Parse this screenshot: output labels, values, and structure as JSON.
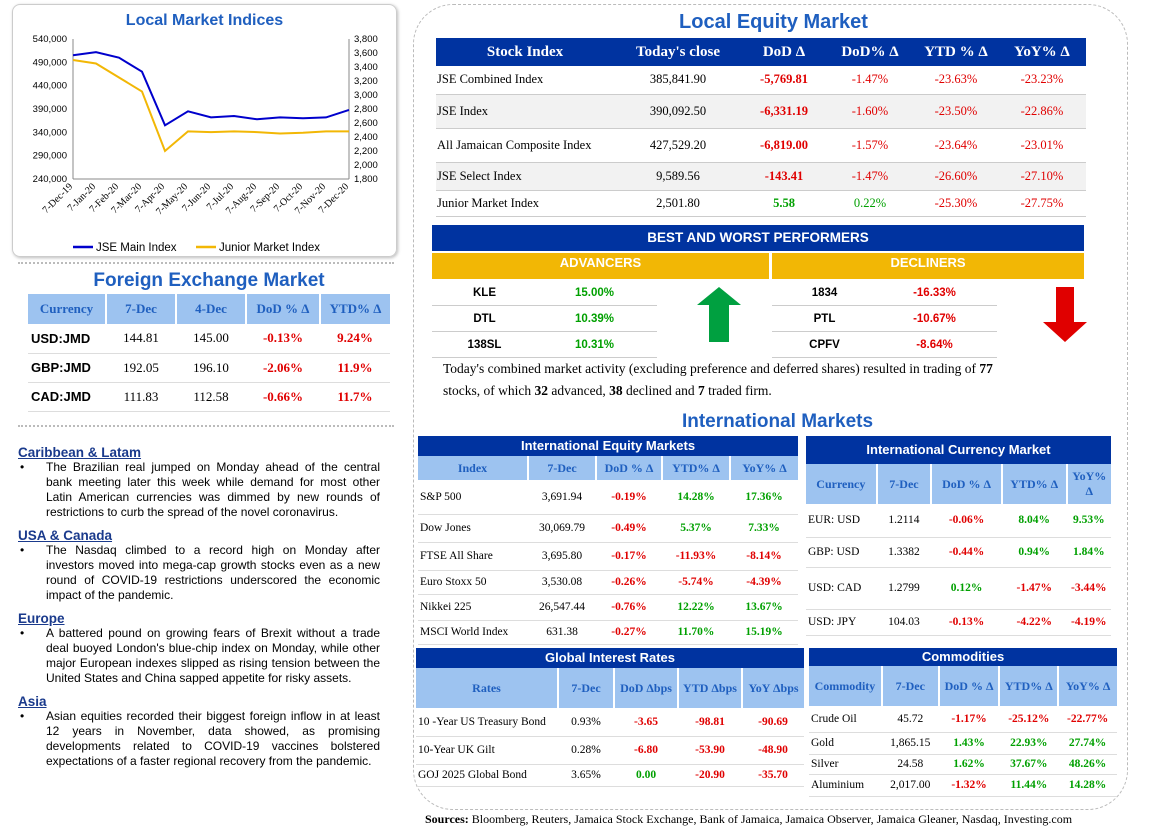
{
  "indices_chart": {
    "title": "Local Market Indices",
    "left_ticks": [
      "540,000",
      "490,000",
      "440,000",
      "390,000",
      "340,000",
      "290,000",
      "240,000"
    ],
    "right_ticks": [
      "3,800",
      "3,600",
      "3,400",
      "3,200",
      "3,000",
      "2,800",
      "2,600",
      "2,400",
      "2,200",
      "2,000",
      "1,800"
    ],
    "x_ticks": [
      "7-Dec-19",
      "7-Jan-20",
      "7-Feb-20",
      "7-Mar-20",
      "7-Apr-20",
      "7-May-20",
      "7-Jun-20",
      "7-Jul-20",
      "7-Aug-20",
      "7-Sep-20",
      "7-Oct-20",
      "7-Nov-20",
      "7-Dec-20"
    ],
    "legend": [
      "JSE Main Index",
      "Junior Market Index"
    ],
    "colors": {
      "main": "#0000cc",
      "junior": "#f2b705"
    }
  },
  "chart_data": {
    "type": "line",
    "title": "Local Market Indices",
    "x": [
      "7-Dec-19",
      "7-Jan-20",
      "7-Feb-20",
      "7-Mar-20",
      "7-Apr-20",
      "7-May-20",
      "7-Jun-20",
      "7-Jul-20",
      "7-Aug-20",
      "7-Sep-20",
      "7-Oct-20",
      "7-Nov-20",
      "7-Dec-20"
    ],
    "series": [
      {
        "name": "JSE Main Index",
        "axis": "left",
        "values": [
          505000,
          512000,
          500000,
          470000,
          355000,
          385000,
          372000,
          375000,
          368000,
          372000,
          370000,
          372000,
          388000
        ]
      },
      {
        "name": "Junior Market Index",
        "axis": "right",
        "values": [
          3500,
          3450,
          3250,
          3050,
          2200,
          2480,
          2470,
          2480,
          2470,
          2450,
          2460,
          2480,
          2480
        ]
      }
    ],
    "ylim_left": [
      240000,
      540000
    ],
    "ylim_right": [
      1800,
      3800
    ]
  },
  "fx": {
    "title": "Foreign Exchange Market",
    "headers": [
      "Currency",
      "7-Dec",
      "4-Dec",
      "DoD % Δ",
      "YTD% Δ"
    ],
    "rows": [
      {
        "currency": "USD:JMD",
        "c1": "144.81",
        "c2": "145.00",
        "dod": "-0.13%",
        "ytd": "9.24%"
      },
      {
        "currency": "GBP:JMD",
        "c1": "192.05",
        "c2": "196.10",
        "dod": "-2.06%",
        "ytd": "11.9%"
      },
      {
        "currency": "CAD:JMD",
        "c1": "111.83",
        "c2": "112.58",
        "dod": "-0.66%",
        "ytd": "11.7%"
      }
    ]
  },
  "news": [
    {
      "heading": "Caribbean & Latam",
      "text": "The Brazilian real jumped on Monday ahead of the central bank meeting later this week while demand for most other Latin American currencies was dimmed by new rounds of restrictions to curb the spread of the novel coronavirus."
    },
    {
      "heading": "USA & Canada",
      "text": "The Nasdaq climbed to a record high on Monday after investors moved into mega-cap growth stocks even as a new round of COVID-19 restrictions underscored the economic impact of the pandemic."
    },
    {
      "heading": "Europe",
      "text": "A battered pound on growing fears of Brexit without a trade deal buoyed London's blue-chip index on Monday, while other major European indexes slipped as rising tension between the United States and China sapped appetite for risky assets."
    },
    {
      "heading": "Asia",
      "text": "Asian equities recorded their biggest foreign inflow in at least 12 years in November, data showed, as promising developments related to COVID-19 vaccines bolstered expectations of a faster regional recovery from the pandemic."
    }
  ],
  "equity": {
    "title": "Local Equity Market",
    "headers": [
      "Stock Index",
      "Today's close",
      "DoD  Δ",
      "DoD% Δ",
      "YTD % Δ",
      "YoY% Δ"
    ],
    "rows": [
      {
        "name": "JSE Combined Index",
        "close": "385,841.90",
        "dod": "-5,769.81",
        "dodp": "-1.47%",
        "ytd": "-23.63%",
        "yoy": "-23.23%"
      },
      {
        "name": "JSE Index",
        "close": "390,092.50",
        "dod": "-6,331.19",
        "dodp": "-1.60%",
        "ytd": "-23.50%",
        "yoy": "-22.86%"
      },
      {
        "name": "All Jamaican Composite Index",
        "close": "427,529.20",
        "dod": "-6,819.00",
        "dodp": "-1.57%",
        "ytd": "-23.64%",
        "yoy": "-23.01%"
      },
      {
        "name": "JSE Select Index",
        "close": "9,589.56",
        "dod": "-143.41",
        "dodp": "-1.47%",
        "ytd": "-26.60%",
        "yoy": "-27.10%"
      },
      {
        "name": "Junior Market Index",
        "close": "2,501.80",
        "dod": "5.58",
        "dodp": "0.22%",
        "ytd": "-25.30%",
        "yoy": "-27.75%"
      }
    ]
  },
  "performers": {
    "title": "BEST AND WORST PERFORMERS",
    "adv_label": "ADVANCERS",
    "dec_label": "DECLINERS",
    "advancers": [
      {
        "t": "KLE",
        "v": "15.00%"
      },
      {
        "t": "DTL",
        "v": "10.39%"
      },
      {
        "t": "138SL",
        "v": "10.31%"
      }
    ],
    "decliners": [
      {
        "t": "1834",
        "v": "-16.33%"
      },
      {
        "t": "PTL",
        "v": "-10.67%"
      },
      {
        "t": "CPFV",
        "v": "-8.64%"
      }
    ]
  },
  "summary": {
    "p1": "Today's combined market activity (excluding preference and deferred shares) resulted in trading of ",
    "n1": "77",
    "p2": "stocks, of which ",
    "n2": "32",
    "p3": " advanced, ",
    "n3": "38",
    "p4": " declined and ",
    "n4": "7",
    "p5": " traded firm."
  },
  "intl_title": "International Markets",
  "intl_equity": {
    "title": "International Equity Markets",
    "headers": [
      "Index",
      "7-Dec",
      "DoD % Δ",
      "YTD% Δ",
      "YoY% Δ"
    ],
    "rows": [
      {
        "n": "S&P 500",
        "a": "3,691.94",
        "b": "-0.19%",
        "c": "14.28%",
        "d": "17.36%"
      },
      {
        "n": "Dow Jones",
        "a": "30,069.79",
        "b": "-0.49%",
        "c": "5.37%",
        "d": "7.33%"
      },
      {
        "n": "FTSE All Share",
        "a": "3,695.80",
        "b": "-0.17%",
        "c": "-11.93%",
        "d": "-8.14%"
      },
      {
        "n": "Euro Stoxx 50",
        "a": "3,530.08",
        "b": "-0.26%",
        "c": "-5.74%",
        "d": "-4.39%"
      },
      {
        "n": "Nikkei 225",
        "a": "26,547.44",
        "b": "-0.76%",
        "c": "12.22%",
        "d": "13.67%"
      },
      {
        "n": "MSCI World Index",
        "a": "631.38",
        "b": "-0.27%",
        "c": "11.70%",
        "d": "15.19%"
      }
    ]
  },
  "intl_fx": {
    "title": "International Currency Market",
    "headers": [
      "Currency",
      "7-Dec",
      "DoD % Δ",
      "YTD% Δ",
      "YoY% Δ"
    ],
    "rows": [
      {
        "n": "EUR: USD",
        "a": "1.2114",
        "b": "-0.06%",
        "c": "8.04%",
        "d": "9.53%"
      },
      {
        "n": "GBP: USD",
        "a": "1.3382",
        "b": "-0.44%",
        "c": "0.94%",
        "d": "1.84%"
      },
      {
        "n": "USD: CAD",
        "a": "1.2799",
        "b": "0.12%",
        "c": "-1.47%",
        "d": "-3.44%"
      },
      {
        "n": "USD: JPY",
        "a": "104.03",
        "b": "-0.13%",
        "c": "-4.22%",
        "d": "-4.19%"
      }
    ]
  },
  "rates": {
    "title": "Global Interest Rates",
    "headers": [
      "Rates",
      "7-Dec",
      "DoD Δbps",
      "YTD Δbps",
      "YoY Δbps"
    ],
    "rows": [
      {
        "n": "10 -Year US Treasury Bond",
        "a": "0.93%",
        "b": "-3.65",
        "c": "-98.81",
        "d": "-90.69"
      },
      {
        "n": "10-Year UK Gilt",
        "a": "0.28%",
        "b": "-6.80",
        "c": "-53.90",
        "d": "-48.90"
      },
      {
        "n": "GOJ 2025 Global Bond",
        "a": "3.65%",
        "b": "0.00",
        "c": "-20.90",
        "d": "-35.70"
      }
    ]
  },
  "commodities": {
    "title": "Commodities",
    "headers": [
      "Commodity",
      "7-Dec",
      "DoD % Δ",
      "YTD% Δ",
      "YoY% Δ"
    ],
    "rows": [
      {
        "n": "Crude Oil",
        "a": "45.72",
        "b": "-1.17%",
        "c": "-25.12%",
        "d": "-22.77%"
      },
      {
        "n": "Gold",
        "a": "1,865.15",
        "b": "1.43%",
        "c": "22.93%",
        "d": "27.74%"
      },
      {
        "n": "Silver",
        "a": "24.58",
        "b": "1.62%",
        "c": "37.67%",
        "d": "48.26%"
      },
      {
        "n": "Aluminium",
        "a": "2,017.00",
        "b": "-1.32%",
        "c": "11.44%",
        "d": "14.28%"
      }
    ]
  },
  "sources": {
    "label": "Sources:",
    "text": " Bloomberg, Reuters, Jamaica Stock Exchange, Bank of Jamaica, Jamaica Observer, Jamaica Gleaner, Nasdaq, Investing.com"
  }
}
